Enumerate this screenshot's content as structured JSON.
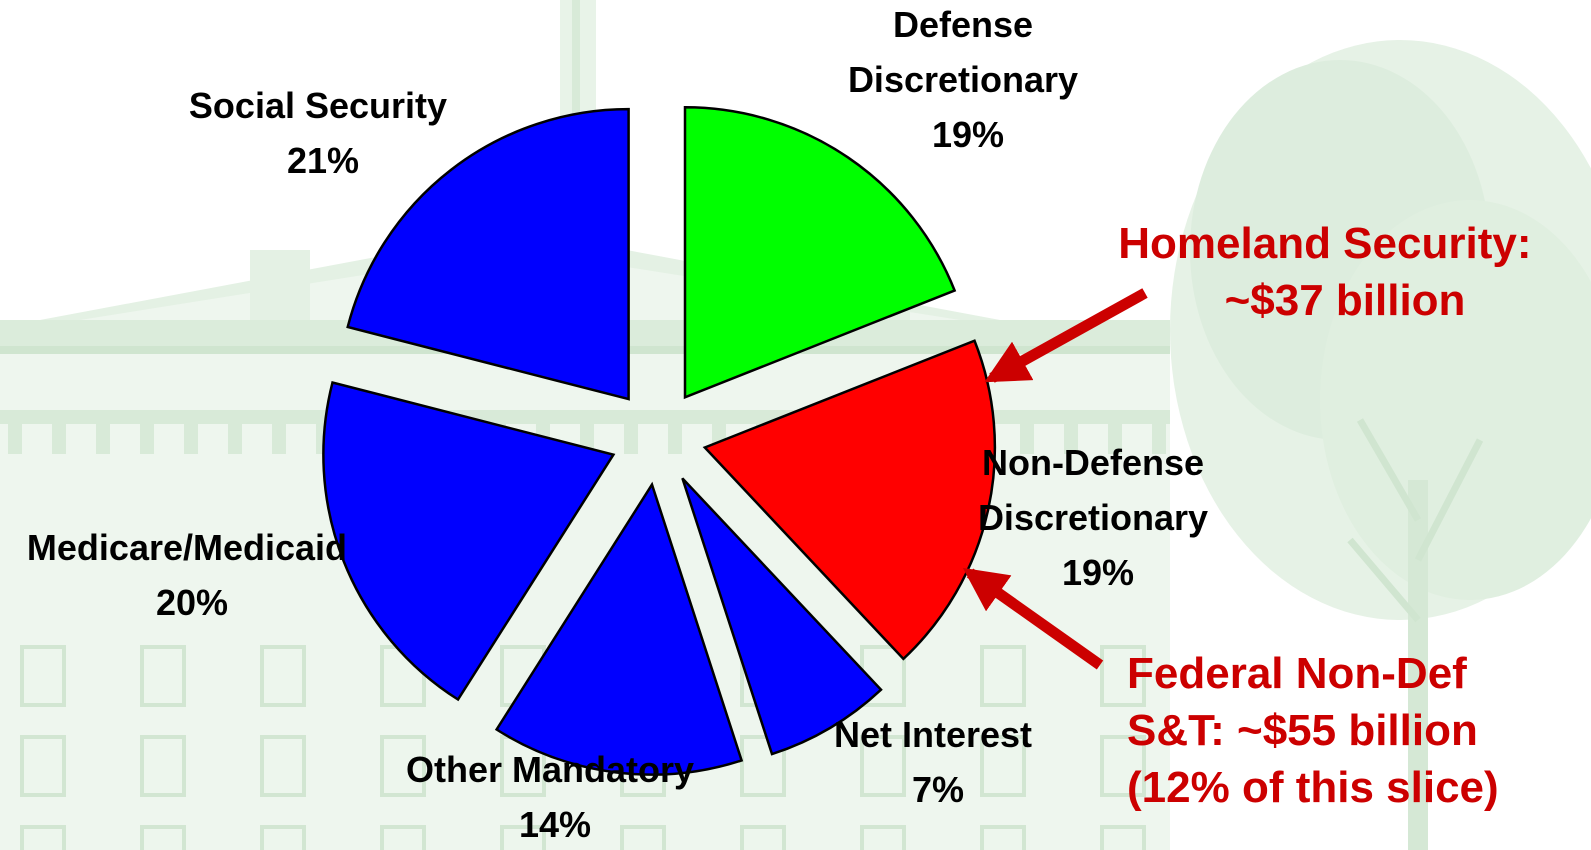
{
  "chart_data": {
    "type": "pie",
    "exploded": true,
    "slices": [
      {
        "name": "Defense Discretionary",
        "label_lines": [
          "Defense",
          "Discretionary"
        ],
        "value_label": "19%",
        "value": 19,
        "color": "#00ff00"
      },
      {
        "name": "Non-Defense Discretionary",
        "label_lines": [
          "Non-Defense",
          "Discretionary"
        ],
        "value_label": "19%",
        "value": 19,
        "color": "#ff0000"
      },
      {
        "name": "Net Interest",
        "label_lines": [
          "Net Interest"
        ],
        "value_label": "7%",
        "value": 7,
        "color": "#0000ff"
      },
      {
        "name": "Other Mandatory",
        "label_lines": [
          "Other Mandatory"
        ],
        "value_label": "14%",
        "value": 14,
        "color": "#0000ff"
      },
      {
        "name": "Medicare/Medicaid",
        "label_lines": [
          "Medicare/Medicaid"
        ],
        "value_label": "20%",
        "value": 20,
        "color": "#0000ff"
      },
      {
        "name": "Social Security",
        "label_lines": [
          "Social Security"
        ],
        "value_label": "21%",
        "value": 21,
        "color": "#0000ff"
      }
    ],
    "annotations": [
      {
        "id": "homeland",
        "lines": [
          "Homeland Security:",
          "~$37 billion"
        ],
        "color": "#cc0000",
        "target": "Non-Defense Discretionary"
      },
      {
        "id": "federal-st",
        "lines": [
          "Federal Non-Def",
          "S&T: ~$55 billion",
          "(12% of this slice)"
        ],
        "color": "#cc0000",
        "target": "Non-Defense Discretionary"
      }
    ]
  },
  "colors": {
    "background_tint": "#cfe5cf",
    "slice_outline": "#000000",
    "annotation": "#cc0000"
  }
}
